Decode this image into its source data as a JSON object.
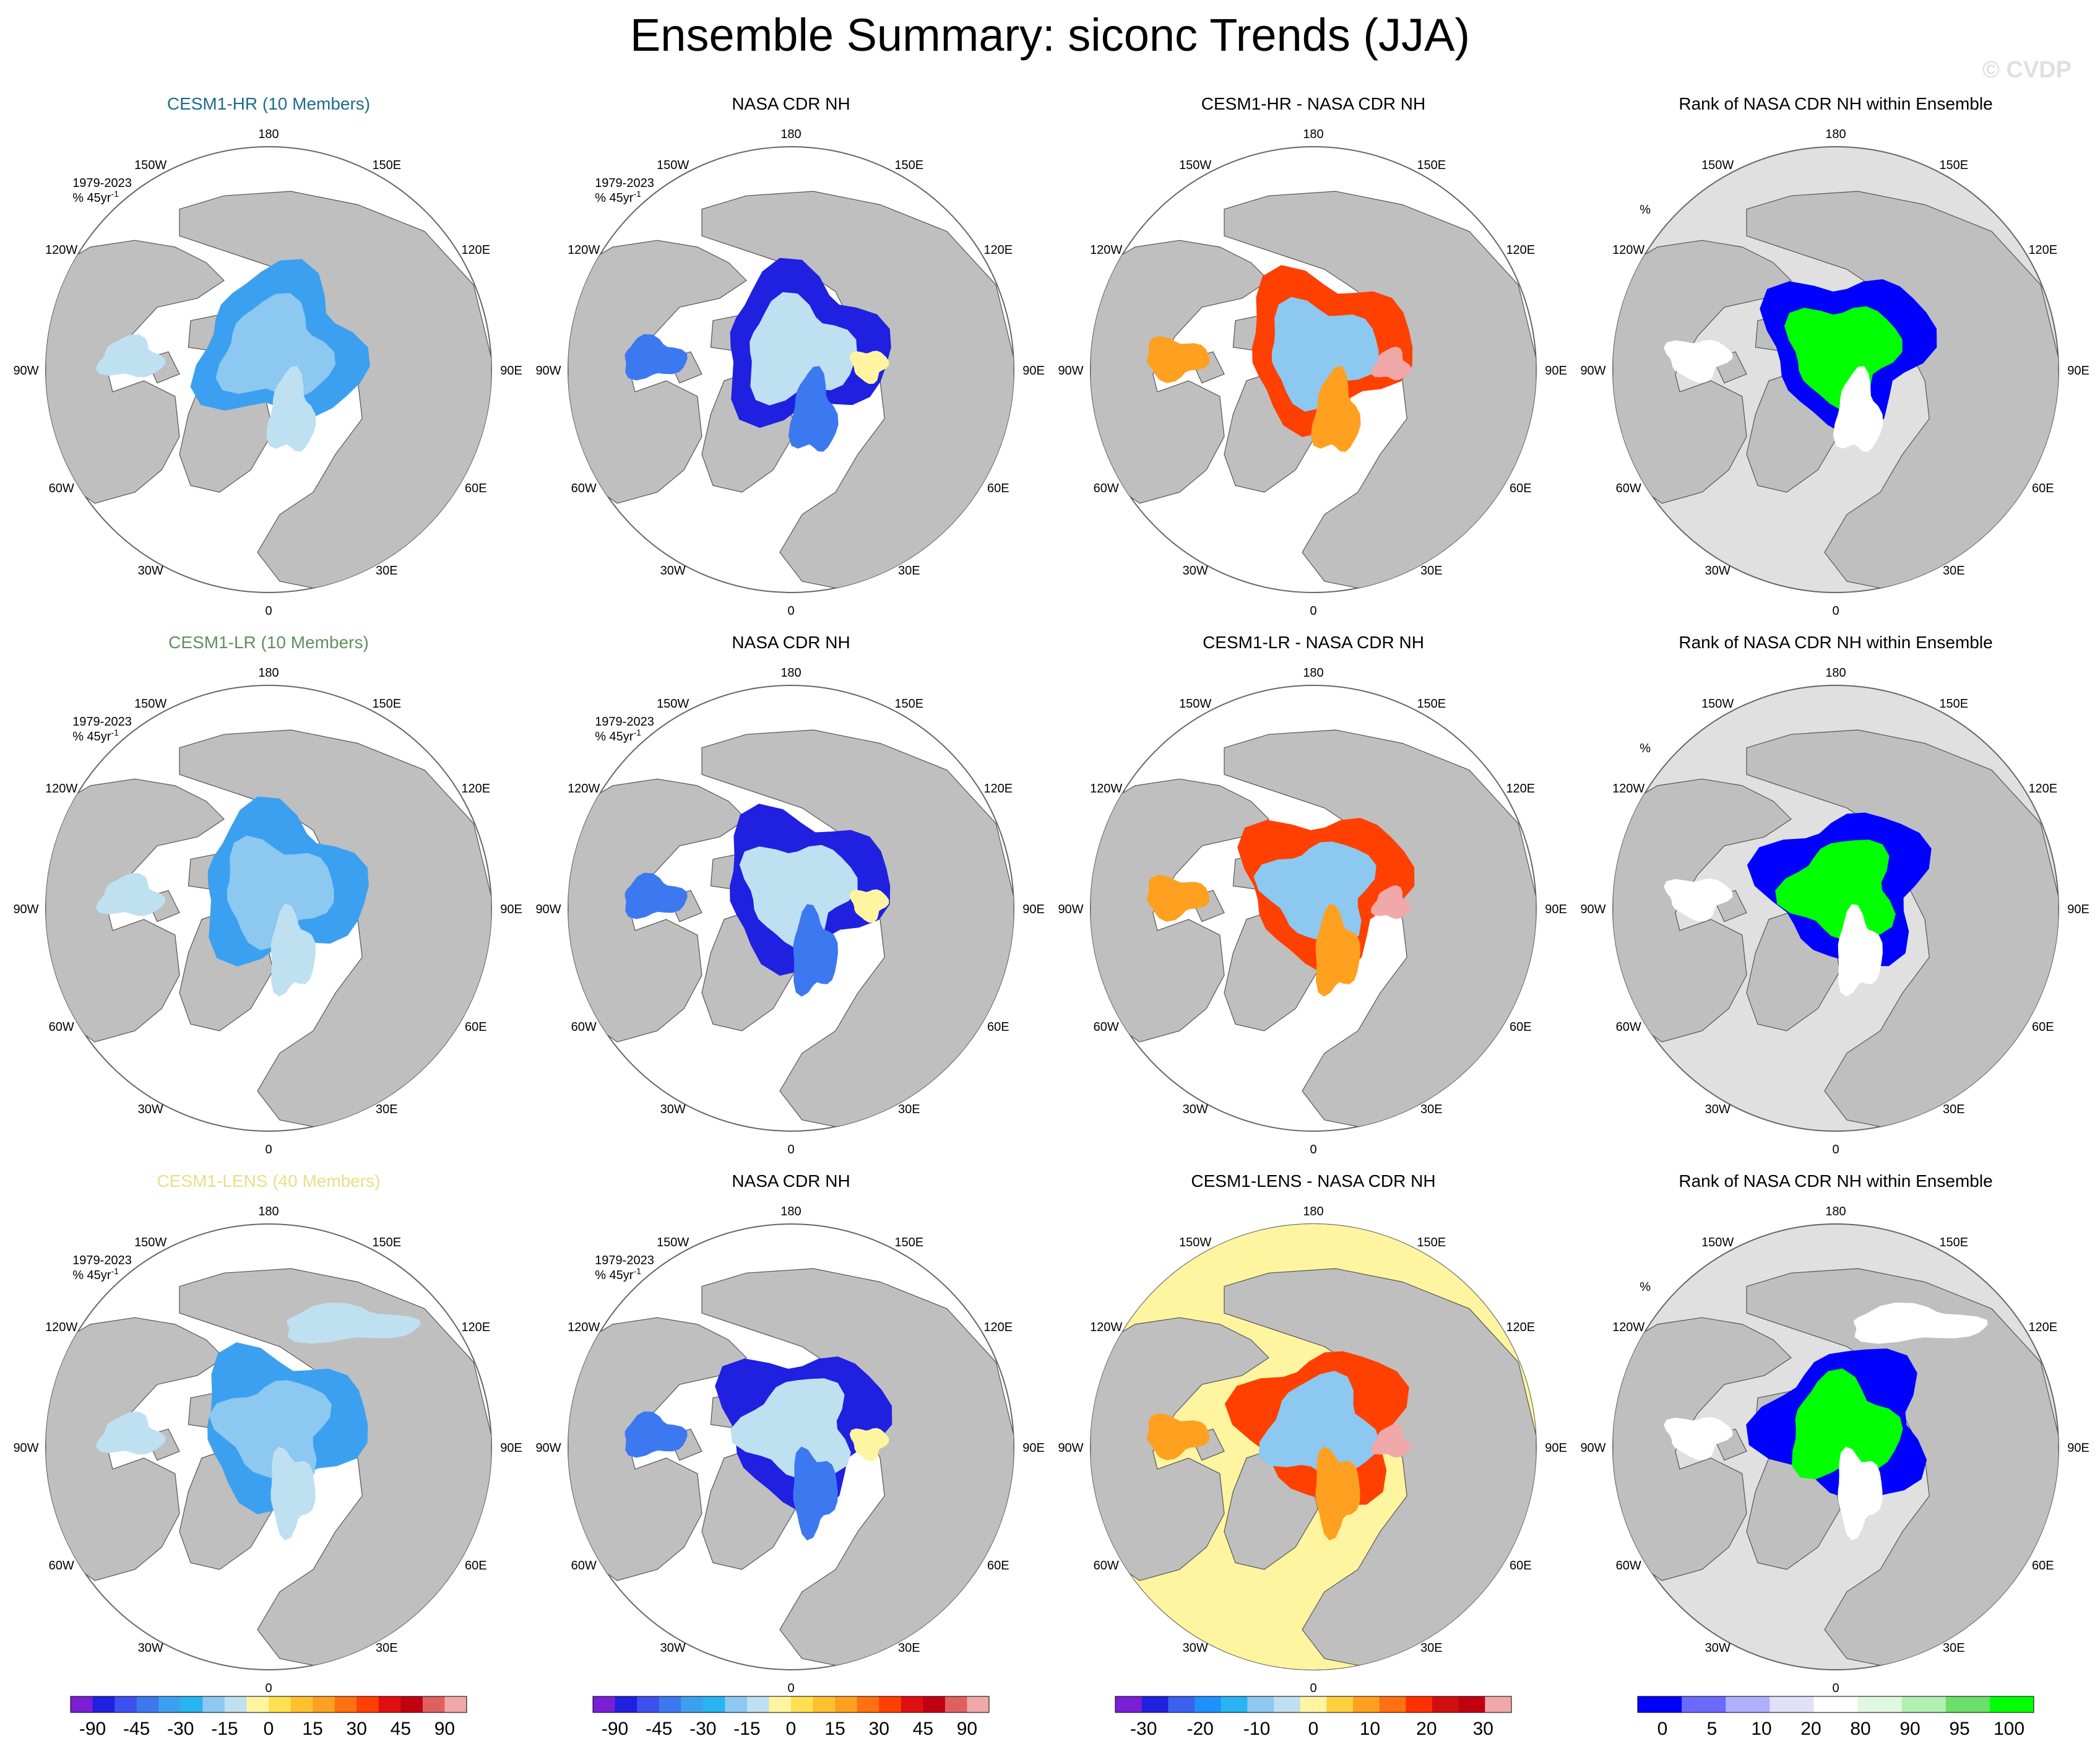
{
  "title": "Ensemble Summary: siconc Trends (JJA)",
  "watermark": "© CVDP",
  "colors": {
    "land": "#bfbfbf",
    "ocean": "#ffffff",
    "rank_background": "#e0e0e0",
    "hr_title": "#1f6b8c",
    "lr_title": "#5f8f5f",
    "lens_title": "#e8df86"
  },
  "panel_meta": {
    "period": "1979-2023",
    "units": "% 45yr",
    "units_exponent": "-1",
    "rank_units": "%"
  },
  "map_labels": {
    "lon_top": "180",
    "lon_bottom": "0",
    "lon_150W": "150W",
    "lon_150E": "150E",
    "lon_120W": "120W",
    "lon_120E": "120E",
    "lon_90W": "90W",
    "lon_90E": "90E",
    "lon_60W": "60W",
    "lon_60E": "60E",
    "lon_30W": "30W",
    "lon_30E": "30E"
  },
  "rows": [
    {
      "model": "CESM1-HR (10 Members)",
      "model_color": "#1f6b8c",
      "panels": [
        "CESM1-HR (10 Members)",
        "NASA CDR NH",
        "CESM1-HR - NASA CDR NH",
        "Rank of NASA CDR NH within Ensemble"
      ]
    },
    {
      "model": "CESM1-LR (10 Members)",
      "model_color": "#5f8f5f",
      "panels": [
        "CESM1-LR (10 Members)",
        "NASA CDR NH",
        "CESM1-LR - NASA CDR NH",
        "Rank of NASA CDR NH within Ensemble"
      ]
    },
    {
      "model": "CESM1-LENS (40 Members)",
      "model_color": "#e8df86",
      "panels": [
        "CESM1-LENS (40 Members)",
        "NASA CDR NH",
        "CESM1-LENS - NASA CDR NH",
        "Rank of NASA CDR NH within Ensemble"
      ]
    }
  ],
  "chart_data": [
    {
      "type": "heatmap",
      "variable": "siconc",
      "season": "JJA",
      "description_units": "% 45yr-1",
      "colorbar": {
        "tick_labels": [
          "-90",
          "-45",
          "-30",
          "-15",
          "0",
          "15",
          "30",
          "45",
          "90"
        ],
        "colors": [
          "#7a1fd6",
          "#2020e0",
          "#3c50f0",
          "#3c78f0",
          "#3ca0f0",
          "#28b4f0",
          "#8cc8f0",
          "#bfe0f0",
          "#fff5a0",
          "#ffe050",
          "#ffc030",
          "#ffa020",
          "#ff7010",
          "#ff4000",
          "#e01010",
          "#c00010",
          "#e06060",
          "#f0a8a8"
        ]
      }
    },
    {
      "type": "heatmap",
      "variable": "siconc",
      "season": "JJA",
      "description_units": "% 45yr-1",
      "colorbar": {
        "tick_labels": [
          "-90",
          "-45",
          "-30",
          "-15",
          "0",
          "15",
          "30",
          "45",
          "90"
        ],
        "colors": [
          "#7a1fd6",
          "#2020e0",
          "#3c50f0",
          "#3c78f0",
          "#3ca0f0",
          "#28b4f0",
          "#8cc8f0",
          "#bfe0f0",
          "#fff5a0",
          "#ffe050",
          "#ffc030",
          "#ffa020",
          "#ff7010",
          "#ff4000",
          "#e01010",
          "#c00010",
          "#e06060",
          "#f0a8a8"
        ]
      }
    },
    {
      "type": "heatmap",
      "variable": "siconc difference",
      "season": "JJA",
      "colorbar": {
        "tick_labels": [
          "-30",
          "-20",
          "-10",
          "0",
          "10",
          "20",
          "30"
        ],
        "colors": [
          "#7a1fd6",
          "#2020e0",
          "#3c60f0",
          "#1e90ff",
          "#28b4f0",
          "#8cc8f0",
          "#bfe0f0",
          "#fff5a0",
          "#ffd040",
          "#ffa020",
          "#ff7010",
          "#ff3000",
          "#d01010",
          "#c00010",
          "#f0a8a8"
        ]
      }
    },
    {
      "type": "heatmap",
      "variable": "rank",
      "units": "%",
      "colorbar": {
        "tick_labels": [
          "0",
          "5",
          "10",
          "20",
          "80",
          "90",
          "95",
          "100"
        ],
        "colors": [
          "#0000ff",
          "#6a6aff",
          "#b0b0ff",
          "#e0e0f8",
          "#ffffff",
          "#e0f8e0",
          "#b0f0b0",
          "#6ae06a",
          "#00ff00"
        ]
      }
    }
  ]
}
